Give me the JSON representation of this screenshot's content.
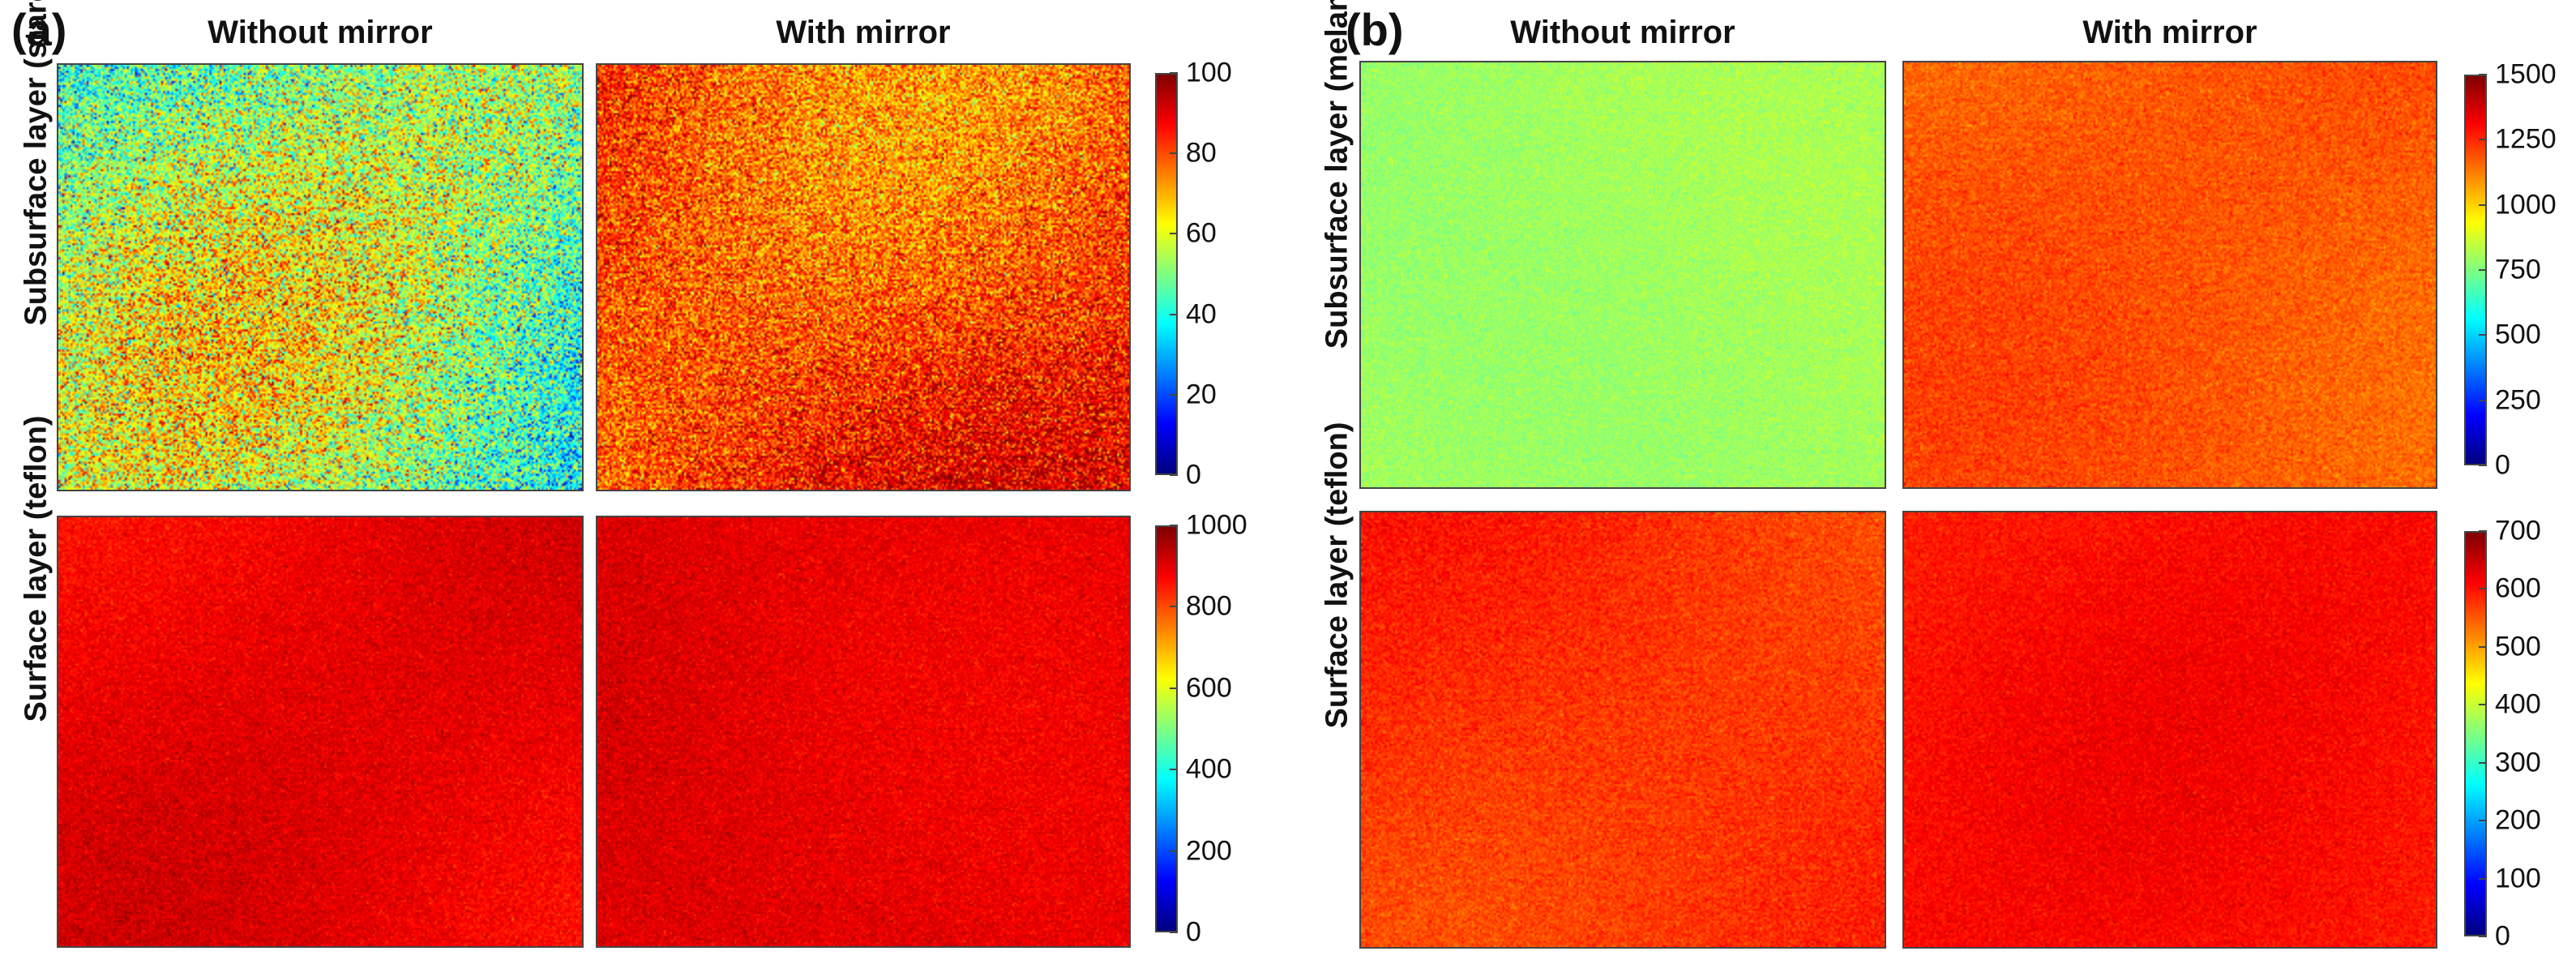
{
  "panels": [
    {
      "letter": "(a)",
      "col_titles": [
        "Without mirror",
        "With mirror"
      ],
      "rows": [
        {
          "label": "Subsurface layer (starch)",
          "colorbar_ticks": [
            "100",
            "80",
            "60",
            "40",
            "20",
            "0"
          ]
        },
        {
          "label": "Surface layer (teflon)",
          "colorbar_ticks": [
            "1000",
            "800",
            "600",
            "400",
            "200",
            "0"
          ]
        }
      ]
    },
    {
      "letter": "(b)",
      "col_titles": [
        "Without mirror",
        "With mirror"
      ],
      "rows": [
        {
          "label": "Subsurface layer (melamine)",
          "colorbar_ticks": [
            "1500",
            "1250",
            "1000",
            "750",
            "500",
            "250",
            "0"
          ]
        },
        {
          "label": "Surface layer (teflon)",
          "colorbar_ticks": [
            "700",
            "600",
            "500",
            "400",
            "300",
            "200",
            "100",
            "0"
          ]
        }
      ]
    }
  ],
  "chart_data": [
    {
      "type": "heatmap",
      "panel": "(a)",
      "title": "Without mirror",
      "row": "Subsurface layer (starch)",
      "colormap": "jet",
      "clim": [
        0,
        100
      ],
      "mean_value": 48,
      "noise": 14
    },
    {
      "type": "heatmap",
      "panel": "(a)",
      "title": "With mirror",
      "row": "Subsurface layer (starch)",
      "colormap": "jet",
      "clim": [
        0,
        100
      ],
      "mean_value": 82,
      "noise": 9
    },
    {
      "type": "heatmap",
      "panel": "(a)",
      "title": "Without mirror",
      "row": "Surface layer (teflon)",
      "colormap": "jet",
      "clim": [
        0,
        1000
      ],
      "mean_value": 890,
      "noise": 25
    },
    {
      "type": "heatmap",
      "panel": "(a)",
      "title": "With mirror",
      "row": "Surface layer (teflon)",
      "colormap": "jet",
      "clim": [
        0,
        1000
      ],
      "mean_value": 900,
      "noise": 25
    },
    {
      "type": "heatmap",
      "panel": "(b)",
      "title": "Without mirror",
      "row": "Subsurface layer (melamine)",
      "colormap": "jet",
      "clim": [
        0,
        1500
      ],
      "mean_value": 800,
      "noise": 30
    },
    {
      "type": "heatmap",
      "panel": "(b)",
      "title": "With mirror",
      "row": "Subsurface layer (melamine)",
      "colormap": "jet",
      "clim": [
        0,
        1500
      ],
      "mean_value": 1180,
      "noise": 40
    },
    {
      "type": "heatmap",
      "panel": "(b)",
      "title": "Without mirror",
      "row": "Surface layer (teflon)",
      "colormap": "jet",
      "clim": [
        0,
        700
      ],
      "mean_value": 580,
      "noise": 18
    },
    {
      "type": "heatmap",
      "panel": "(b)",
      "title": "With mirror",
      "row": "Surface layer (teflon)",
      "colormap": "jet",
      "clim": [
        0,
        700
      ],
      "mean_value": 600,
      "noise": 15
    }
  ]
}
